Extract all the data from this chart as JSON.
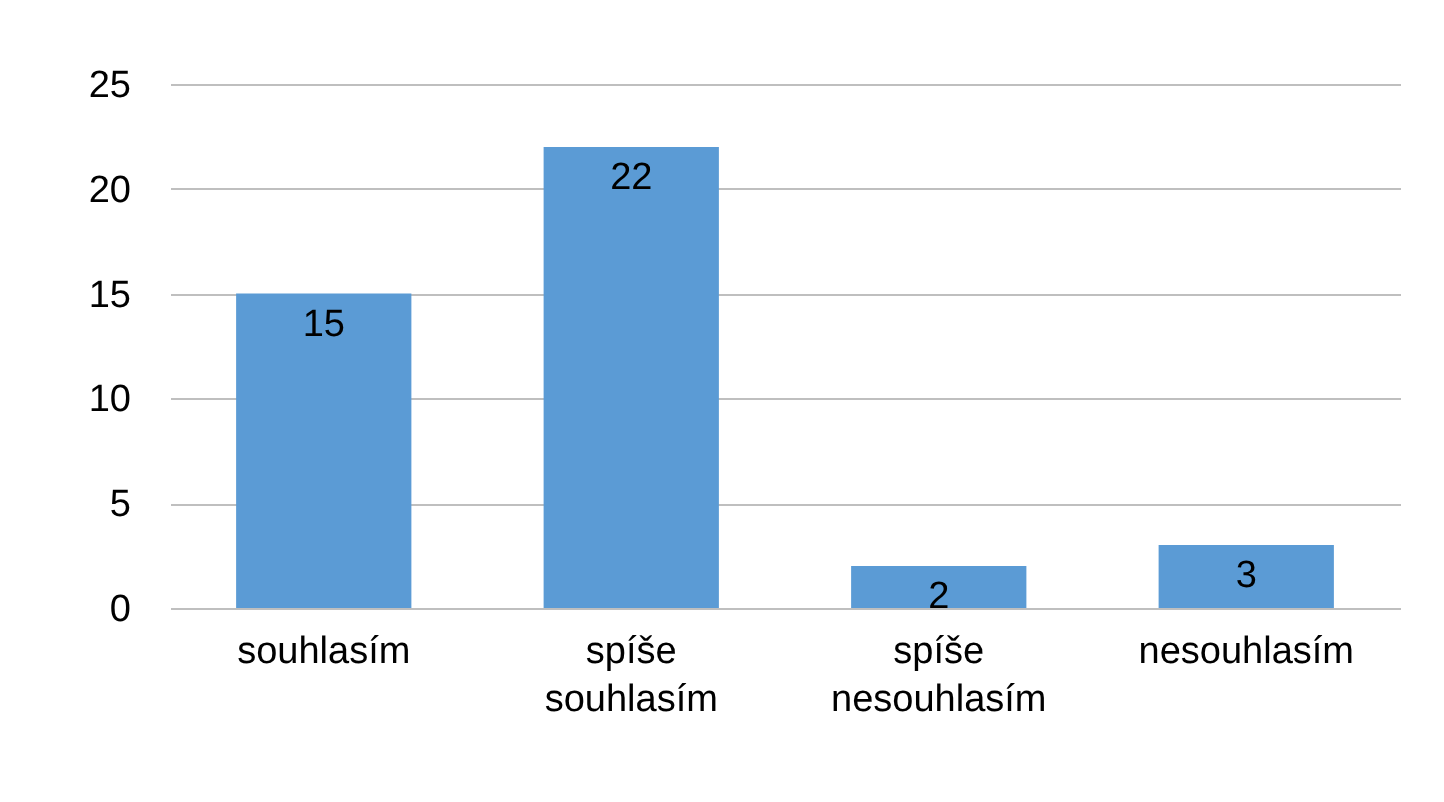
{
  "chart_data": {
    "type": "bar",
    "categories": [
      "souhlasím",
      "spíše souhlasím",
      "spíše nesouhlasím",
      "nesouhlasím"
    ],
    "values": [
      15,
      22,
      2,
      3
    ],
    "color": "#5b9bd5",
    "ylim": [
      0,
      25
    ],
    "yticks": [
      0,
      5,
      10,
      15,
      20,
      25
    ],
    "grid": "y",
    "data_labels": true
  }
}
